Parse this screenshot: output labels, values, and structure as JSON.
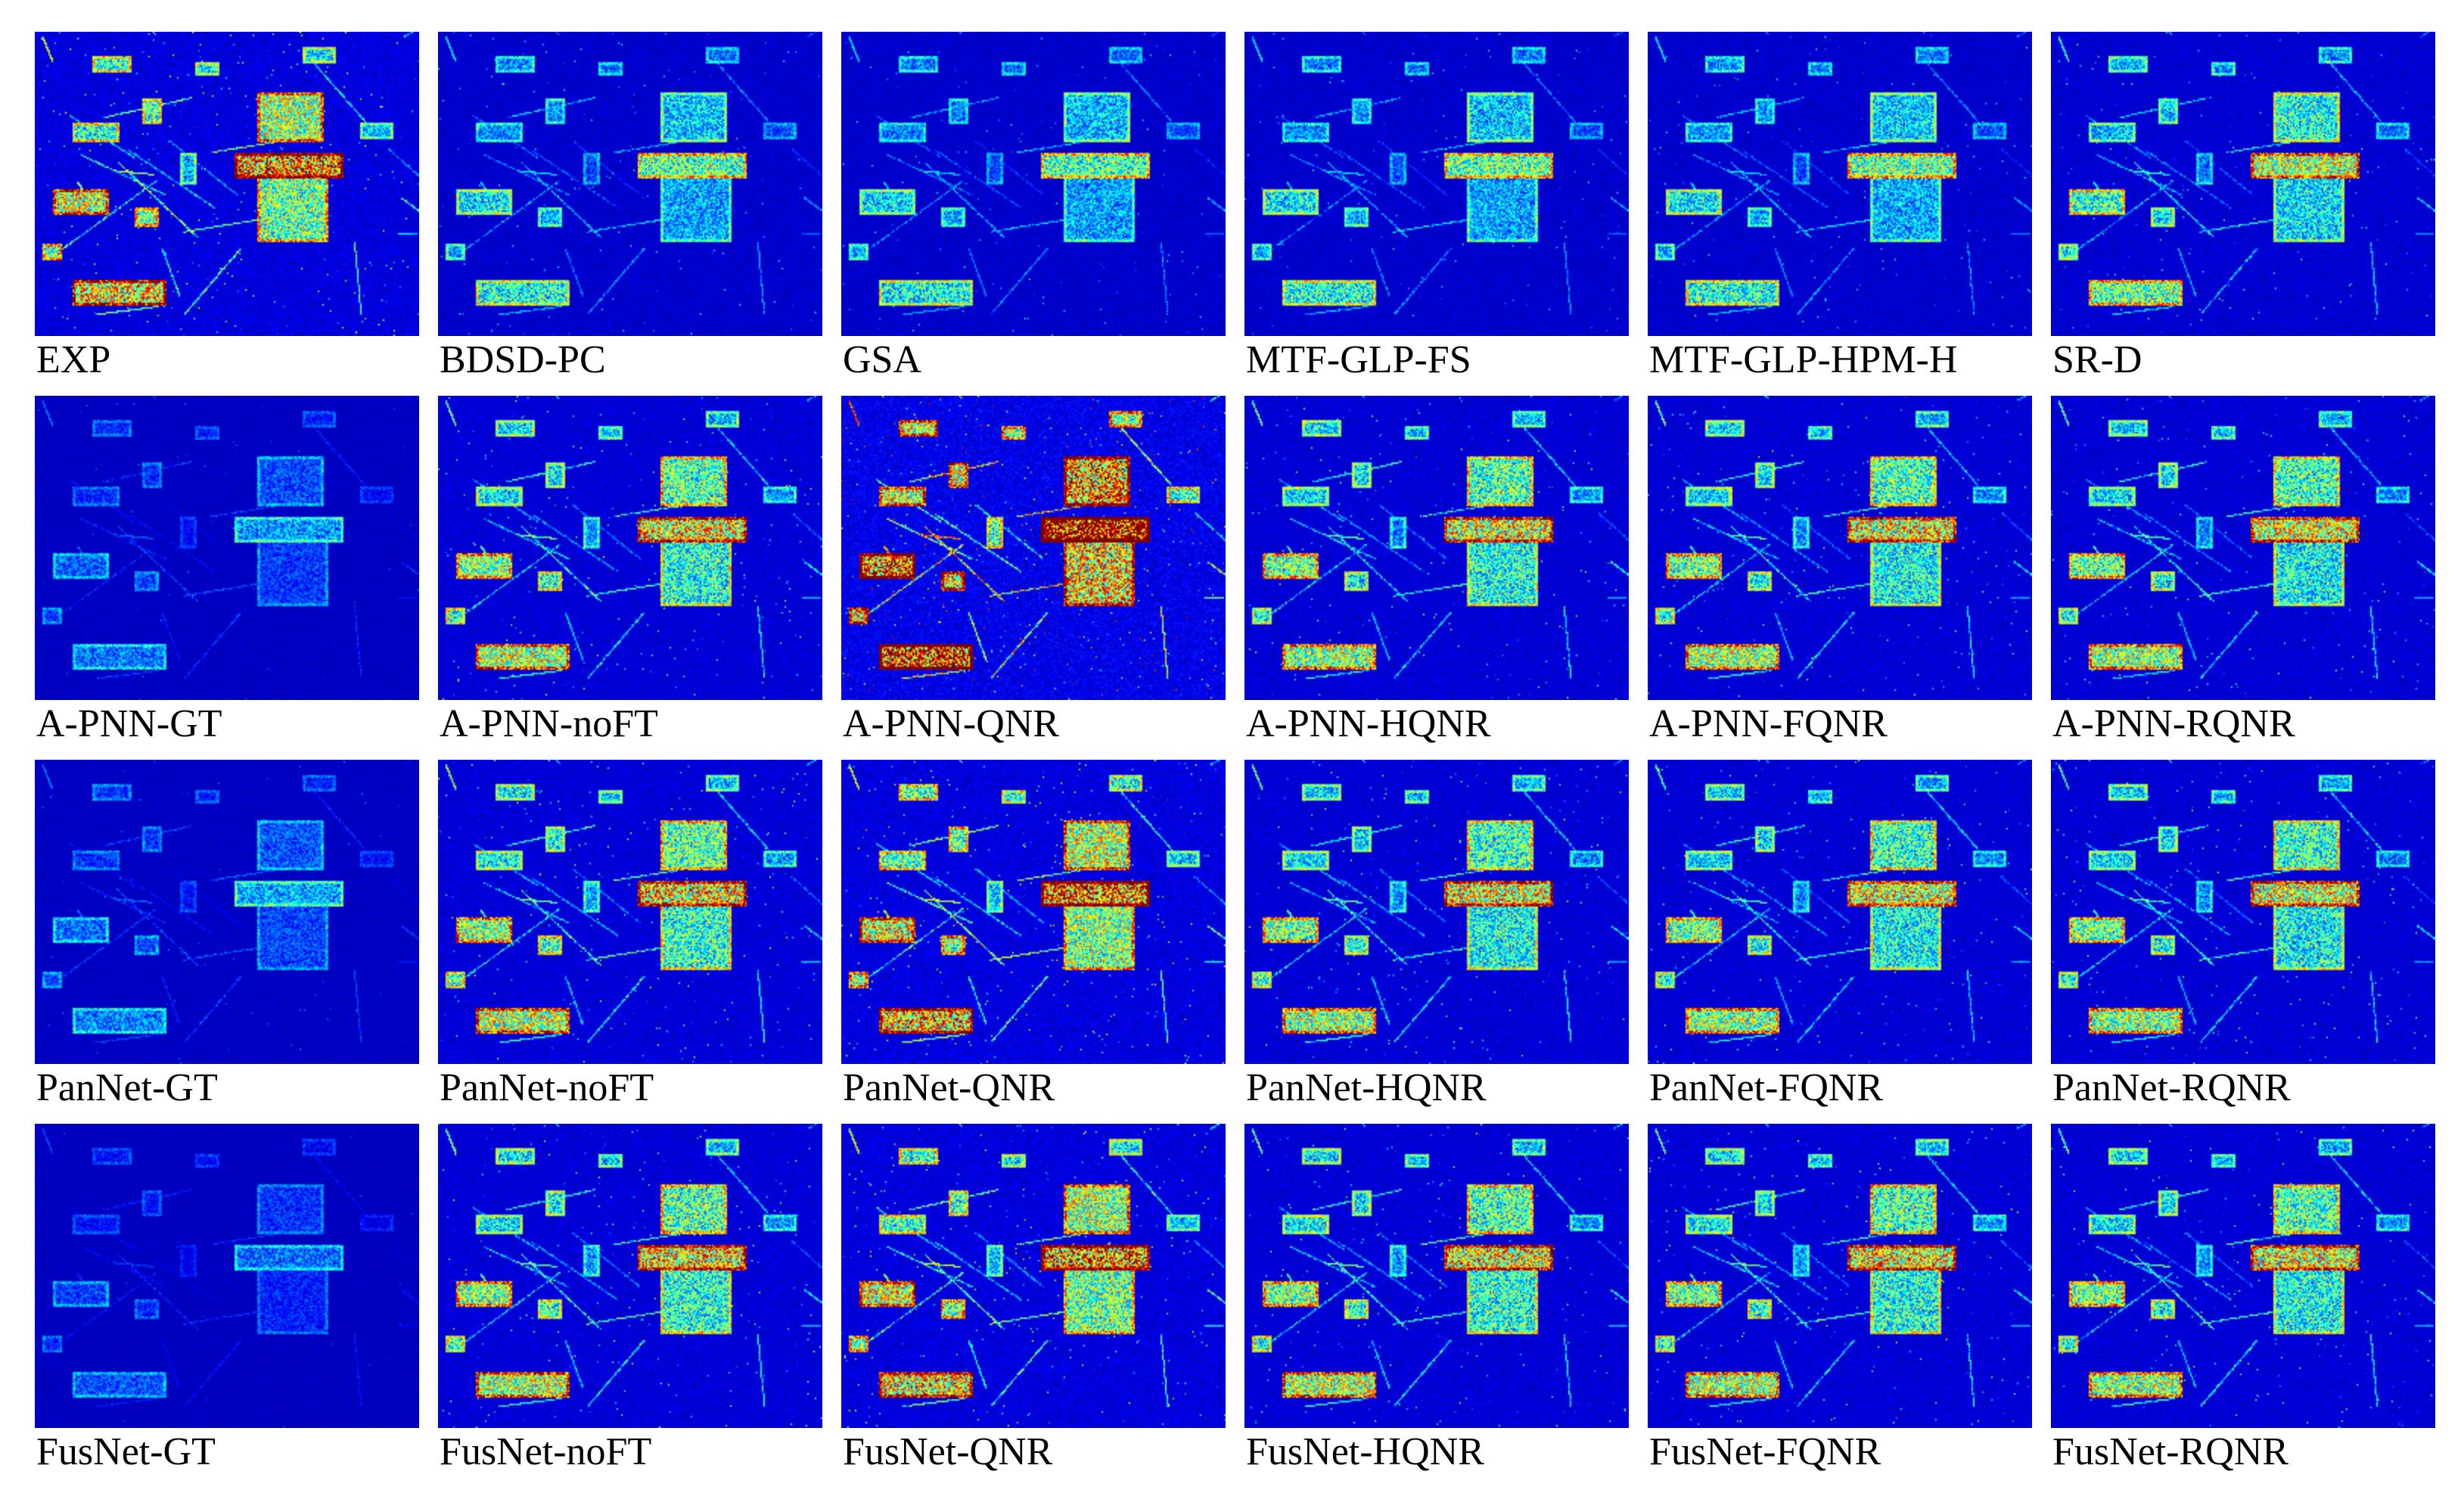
{
  "figure": {
    "colormap": "jet",
    "background_color": "#00008f",
    "rows": [
      {
        "panels": [
          {
            "label": "EXP",
            "activity": 1.0
          },
          {
            "label": "BDSD-PC",
            "activity": 0.62
          },
          {
            "label": "GSA",
            "activity": 0.6
          },
          {
            "label": "MTF-GLP-FS",
            "activity": 0.62
          },
          {
            "label": "MTF-GLP-HPM-H",
            "activity": 0.64
          },
          {
            "label": "SR-D",
            "activity": 0.74
          }
        ]
      },
      {
        "panels": [
          {
            "label": "A-PNN-GT",
            "activity": 0.38
          },
          {
            "label": "A-PNN-noFT",
            "activity": 0.85
          },
          {
            "label": "A-PNN-QNR",
            "activity": 1.35
          },
          {
            "label": "A-PNN-HQNR",
            "activity": 0.82
          },
          {
            "label": "A-PNN-FQNR",
            "activity": 0.82
          },
          {
            "label": "A-PNN-RQNR",
            "activity": 0.8
          }
        ]
      },
      {
        "panels": [
          {
            "label": "PanNet-GT",
            "activity": 0.4
          },
          {
            "label": "PanNet-noFT",
            "activity": 0.88
          },
          {
            "label": "PanNet-QNR",
            "activity": 1.05
          },
          {
            "label": "PanNet-HQNR",
            "activity": 0.82
          },
          {
            "label": "PanNet-FQNR",
            "activity": 0.8
          },
          {
            "label": "PanNet-RQNR",
            "activity": 0.8
          }
        ]
      },
      {
        "panels": [
          {
            "label": "FusNet-GT",
            "activity": 0.32
          },
          {
            "label": "FusNet-noFT",
            "activity": 0.86
          },
          {
            "label": "FusNet-QNR",
            "activity": 1.0
          },
          {
            "label": "FusNet-HQNR",
            "activity": 0.85
          },
          {
            "label": "FusNet-FQNR",
            "activity": 0.84
          },
          {
            "label": "FusNet-RQNR",
            "activity": 0.82
          }
        ]
      }
    ]
  }
}
